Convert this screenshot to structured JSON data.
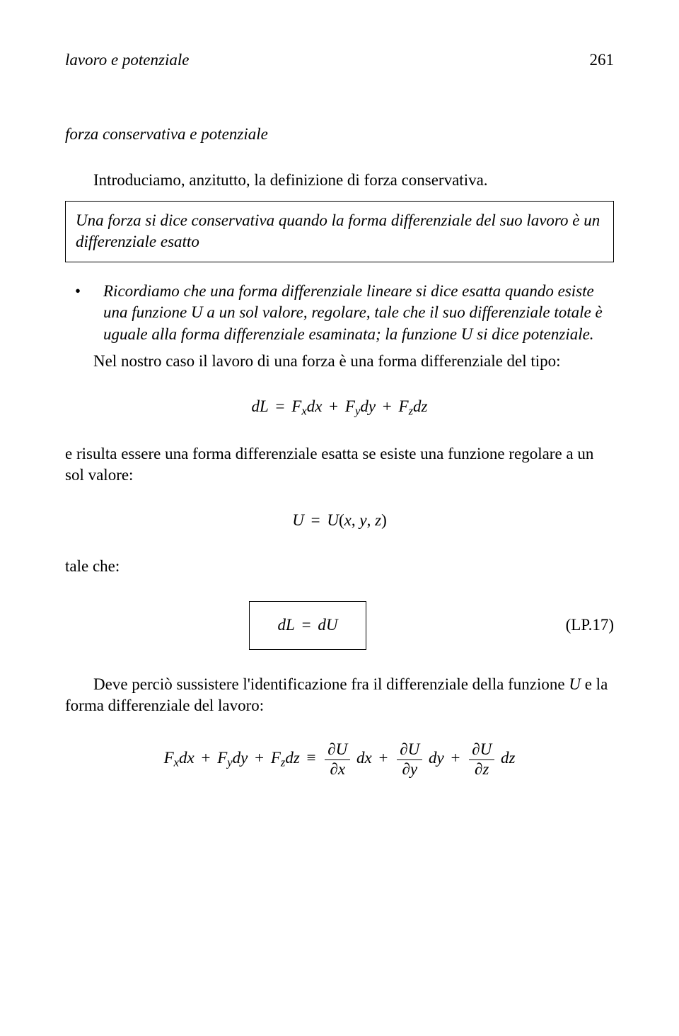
{
  "runhead": {
    "title": "lavoro e potenziale",
    "pageno": "261"
  },
  "subhead": "forza conservativa e potenziale",
  "intro": "Introduciamo, anzitutto, la definizione di forza conservativa.",
  "defbox": "Una forza si dice conservativa quando la forma differenziale del suo lavoro è un differenziale esatto",
  "bullet1_a": "Ricordiamo che una forma differenziale lineare si dice esatta quando esiste una funzione ",
  "bullet1_U": "U",
  "bullet1_b": " a un sol valore, regolare, tale che il suo differenziale totale è uguale alla forma differenziale esaminata; la funzione ",
  "bullet1_c": " si dice potenziale.",
  "para2": "Nel nostro caso il lavoro di una forza è una forma differenziale del tipo:",
  "para3": "e risulta essere una forma differenziale esatta se esiste una funzione regolare a un sol valore:",
  "talecche": "tale che:",
  "eqnum": "(LP.17)",
  "para4_a": "Deve perciò sussistere l'identificazione fra il differenziale della funzione ",
  "para4_U": "U",
  "para4_b": " e la forma differenziale del lavoro:",
  "math": {
    "d": "d",
    "L": "L",
    "F": "F",
    "x": "x",
    "y": "y",
    "z": "z",
    "U": "U",
    "eq": "=",
    "plus": "+",
    "ident": "≡",
    "partial": "∂",
    "open": "(",
    "close": ")",
    "comma": ","
  }
}
